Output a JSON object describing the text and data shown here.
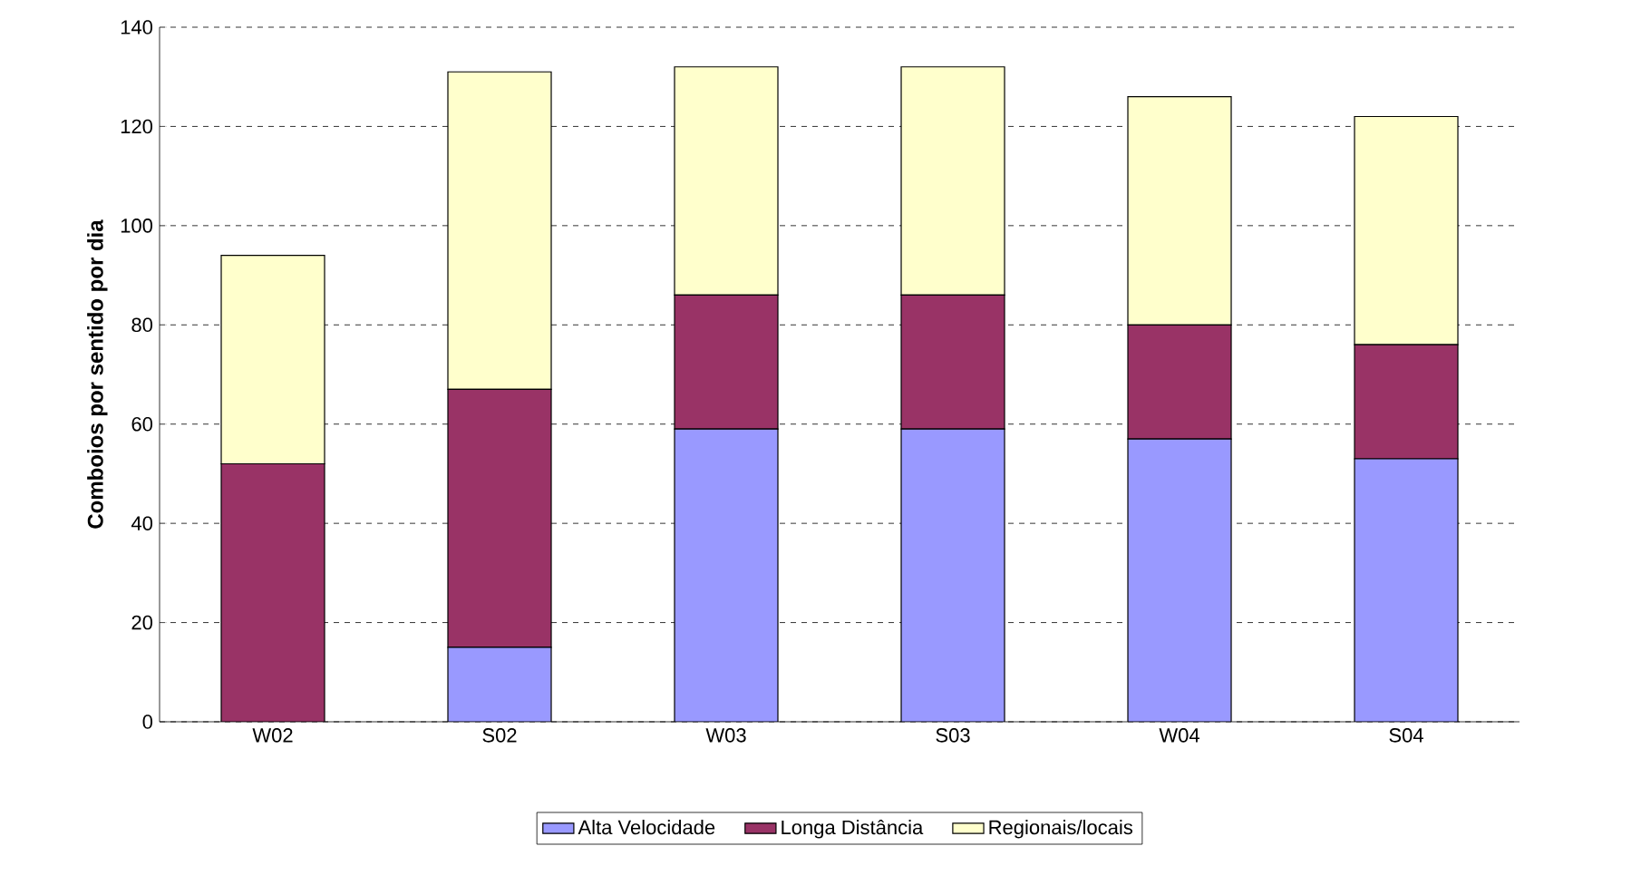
{
  "chart_data": {
    "type": "bar",
    "stacked": true,
    "ylabel": "Comboios por sentido por dia",
    "categories": [
      "W02",
      "S02",
      "W03",
      "S03",
      "W04",
      "S04"
    ],
    "series": [
      {
        "name": "Alta Velocidade",
        "color": "#9999ff",
        "values": [
          0,
          15,
          59,
          59,
          57,
          53
        ]
      },
      {
        "name": "Longa Distância",
        "color": "#993366",
        "values": [
          52,
          52,
          27,
          27,
          23,
          23
        ]
      },
      {
        "name": "Regionais/locais",
        "color": "#ffffcc",
        "values": [
          42,
          64,
          46,
          46,
          46,
          46
        ]
      }
    ],
    "ylim": [
      0,
      140
    ],
    "yticks": [
      0,
      20,
      40,
      60,
      80,
      100,
      120,
      140
    ],
    "grid": "y",
    "legend": "bottom"
  }
}
